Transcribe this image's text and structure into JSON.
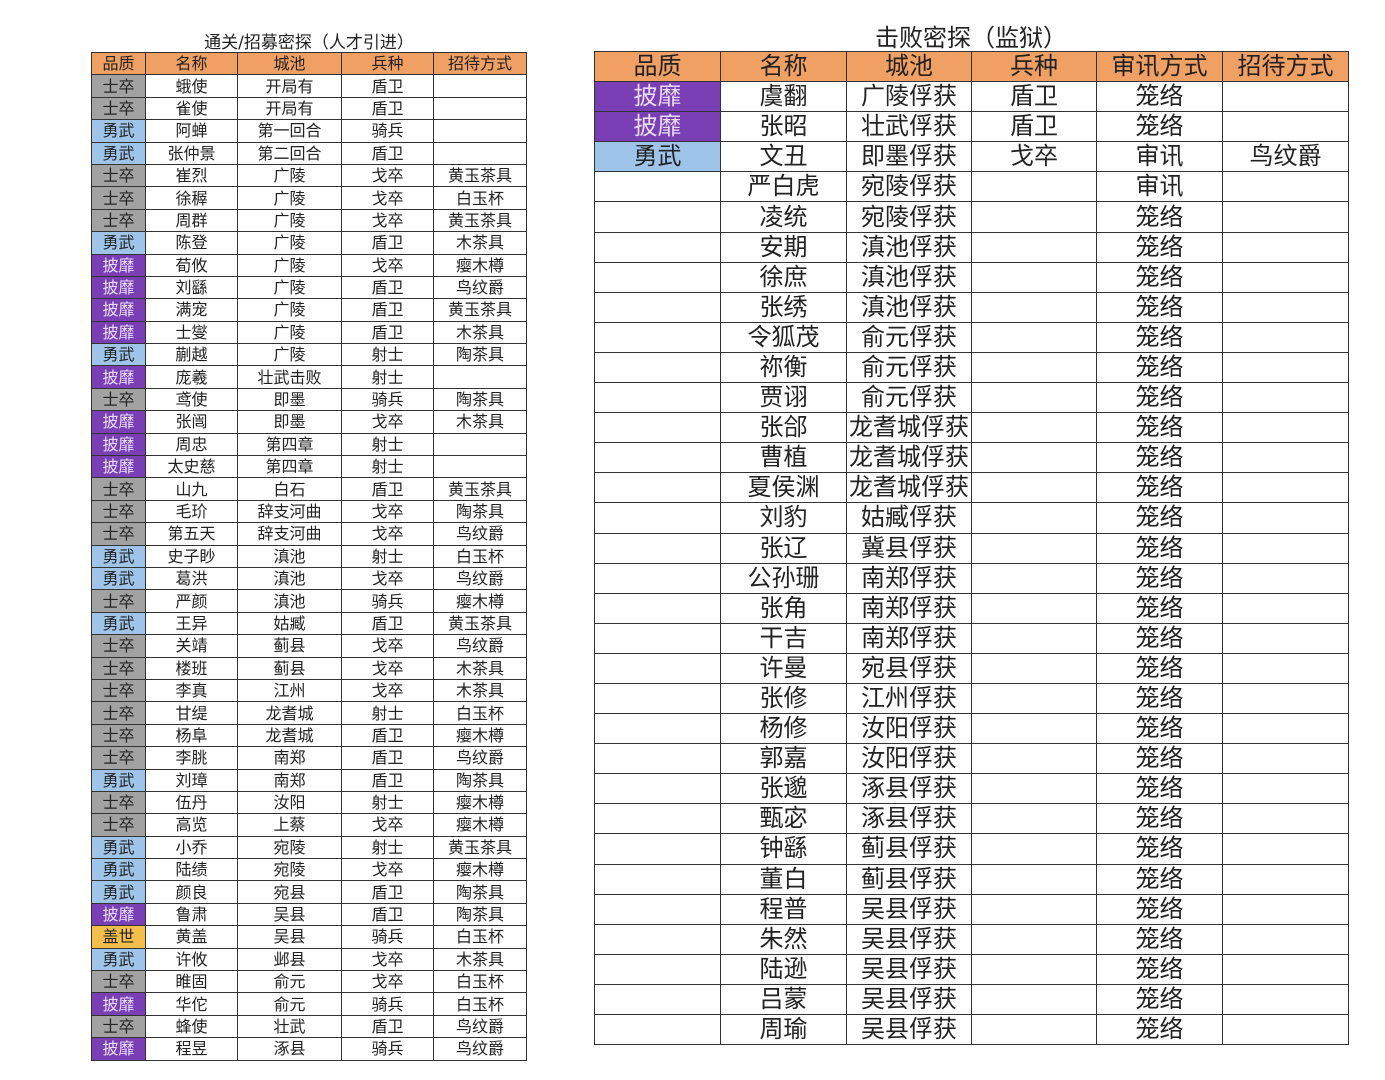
{
  "left_table": {
    "title": "通关/招募密探（人才引进）",
    "headers": [
      "品质",
      "名称",
      "城池",
      "兵种",
      "招待方式"
    ],
    "rows": [
      [
        "士卒",
        "蛾使",
        "开局有",
        "盾卫",
        ""
      ],
      [
        "士卒",
        "雀使",
        "开局有",
        "盾卫",
        ""
      ],
      [
        "勇武",
        "阿蝉",
        "第一回合",
        "骑兵",
        ""
      ],
      [
        "勇武",
        "张仲景",
        "第二回合",
        "盾卫",
        ""
      ],
      [
        "士卒",
        "崔烈",
        "广陵",
        "戈卒",
        "黄玉茶具"
      ],
      [
        "士卒",
        "徐稺",
        "广陵",
        "戈卒",
        "白玉杯"
      ],
      [
        "士卒",
        "周群",
        "广陵",
        "戈卒",
        "黄玉茶具"
      ],
      [
        "勇武",
        "陈登",
        "广陵",
        "盾卫",
        "木茶具"
      ],
      [
        "披靡",
        "荀攸",
        "广陵",
        "戈卒",
        "瘿木樽"
      ],
      [
        "披靡",
        "刘繇",
        "广陵",
        "盾卫",
        "鸟纹爵"
      ],
      [
        "披靡",
        "满宠",
        "广陵",
        "盾卫",
        "黄玉茶具"
      ],
      [
        "披靡",
        "士燮",
        "广陵",
        "盾卫",
        "木茶具"
      ],
      [
        "勇武",
        "蒯越",
        "广陵",
        "射士",
        "陶茶具"
      ],
      [
        "披靡",
        "庞羲",
        "壮武击败",
        "射士",
        ""
      ],
      [
        "士卒",
        "鸢使",
        "即墨",
        "骑兵",
        "陶茶具"
      ],
      [
        "披靡",
        "张闿",
        "即墨",
        "戈卒",
        "木茶具"
      ],
      [
        "披靡",
        "周忠",
        "第四章",
        "射士",
        ""
      ],
      [
        "披靡",
        "太史慈",
        "第四章",
        "射士",
        ""
      ],
      [
        "士卒",
        "山九",
        "白石",
        "盾卫",
        "黄玉茶具"
      ],
      [
        "士卒",
        "毛玠",
        "辞支河曲",
        "戈卒",
        "陶茶具"
      ],
      [
        "士卒",
        "第五天",
        "辞支河曲",
        "戈卒",
        "鸟纹爵"
      ],
      [
        "勇武",
        "史子眇",
        "滇池",
        "射士",
        "白玉杯"
      ],
      [
        "勇武",
        "葛洪",
        "滇池",
        "戈卒",
        "鸟纹爵"
      ],
      [
        "士卒",
        "严颜",
        "滇池",
        "骑兵",
        "瘿木樽"
      ],
      [
        "勇武",
        "王异",
        "姑臧",
        "盾卫",
        "黄玉茶具"
      ],
      [
        "士卒",
        "关靖",
        "蓟县",
        "戈卒",
        "鸟纹爵"
      ],
      [
        "士卒",
        "楼班",
        "蓟县",
        "戈卒",
        "木茶具"
      ],
      [
        "士卒",
        "李真",
        "江州",
        "戈卒",
        "木茶具"
      ],
      [
        "士卒",
        "甘缇",
        "龙耆城",
        "射士",
        "白玉杯"
      ],
      [
        "士卒",
        "杨阜",
        "龙耆城",
        "盾卫",
        "瘿木樽"
      ],
      [
        "士卒",
        "李朓",
        "南郑",
        "盾卫",
        "鸟纹爵"
      ],
      [
        "勇武",
        "刘璋",
        "南郑",
        "盾卫",
        "陶茶具"
      ],
      [
        "士卒",
        "伍丹",
        "汝阳",
        "射士",
        "瘿木樽"
      ],
      [
        "士卒",
        "高览",
        "上蔡",
        "戈卒",
        "瘿木樽"
      ],
      [
        "勇武",
        "小乔",
        "宛陵",
        "射士",
        "黄玉茶具"
      ],
      [
        "勇武",
        "陆绩",
        "宛陵",
        "戈卒",
        "瘿木樽"
      ],
      [
        "勇武",
        "颜良",
        "宛县",
        "盾卫",
        "陶茶具"
      ],
      [
        "披靡",
        "鲁肃",
        "吴县",
        "盾卫",
        "陶茶具"
      ],
      [
        "盖世",
        "黄盖",
        "吴县",
        "骑兵",
        "白玉杯"
      ],
      [
        "勇武",
        "许攸",
        "邺县",
        "戈卒",
        "木茶具"
      ],
      [
        "士卒",
        "睢固",
        "俞元",
        "戈卒",
        "白玉杯"
      ],
      [
        "披靡",
        "华佗",
        "俞元",
        "骑兵",
        "白玉杯"
      ],
      [
        "士卒",
        "蜂使",
        "壮武",
        "盾卫",
        "鸟纹爵"
      ],
      [
        "披靡",
        "程昱",
        "涿县",
        "骑兵",
        "鸟纹爵"
      ]
    ]
  },
  "right_table": {
    "title": "击败密探（监狱）",
    "headers": [
      "品质",
      "名称",
      "城池",
      "兵种",
      "审讯方式",
      "招待方式"
    ],
    "rows": [
      [
        "披靡",
        "虞翻",
        "广陵俘获",
        "盾卫",
        "笼络",
        ""
      ],
      [
        "披靡",
        "张昭",
        "壮武俘获",
        "盾卫",
        "笼络",
        ""
      ],
      [
        "勇武",
        "文丑",
        "即墨俘获",
        "戈卒",
        "审讯",
        "鸟纹爵"
      ],
      [
        "",
        "严白虎",
        "宛陵俘获",
        "",
        "审讯",
        ""
      ],
      [
        "",
        "凌统",
        "宛陵俘获",
        "",
        "笼络",
        ""
      ],
      [
        "",
        "安期",
        "滇池俘获",
        "",
        "笼络",
        ""
      ],
      [
        "",
        "徐庶",
        "滇池俘获",
        "",
        "笼络",
        ""
      ],
      [
        "",
        "张绣",
        "滇池俘获",
        "",
        "笼络",
        ""
      ],
      [
        "",
        "令狐茂",
        "俞元俘获",
        "",
        "笼络",
        ""
      ],
      [
        "",
        "祢衡",
        "俞元俘获",
        "",
        "笼络",
        ""
      ],
      [
        "",
        "贾诩",
        "俞元俘获",
        "",
        "笼络",
        ""
      ],
      [
        "",
        "张郃",
        "龙耆城俘获",
        "",
        "笼络",
        ""
      ],
      [
        "",
        "曹植",
        "龙耆城俘获",
        "",
        "笼络",
        ""
      ],
      [
        "",
        "夏侯渊",
        "龙耆城俘获",
        "",
        "笼络",
        ""
      ],
      [
        "",
        "刘豹",
        "姑臧俘获",
        "",
        "笼络",
        ""
      ],
      [
        "",
        "张辽",
        "冀县俘获",
        "",
        "笼络",
        ""
      ],
      [
        "",
        "公孙珊",
        "南郑俘获",
        "",
        "笼络",
        ""
      ],
      [
        "",
        "张角",
        "南郑俘获",
        "",
        "笼络",
        ""
      ],
      [
        "",
        "干吉",
        "南郑俘获",
        "",
        "笼络",
        ""
      ],
      [
        "",
        "许曼",
        "宛县俘获",
        "",
        "笼络",
        ""
      ],
      [
        "",
        "张修",
        "江州俘获",
        "",
        "笼络",
        ""
      ],
      [
        "",
        "杨修",
        "汝阳俘获",
        "",
        "笼络",
        ""
      ],
      [
        "",
        "郭嘉",
        "汝阳俘获",
        "",
        "笼络",
        ""
      ],
      [
        "",
        "张邈",
        "涿县俘获",
        "",
        "笼络",
        ""
      ],
      [
        "",
        "甄宓",
        "涿县俘获",
        "",
        "笼络",
        ""
      ],
      [
        "",
        "钟繇",
        "蓟县俘获",
        "",
        "笼络",
        ""
      ],
      [
        "",
        "董白",
        "蓟县俘获",
        "",
        "笼络",
        ""
      ],
      [
        "",
        "程普",
        "吴县俘获",
        "",
        "笼络",
        ""
      ],
      [
        "",
        "朱然",
        "吴县俘获",
        "",
        "笼络",
        ""
      ],
      [
        "",
        "陆逊",
        "吴县俘获",
        "",
        "笼络",
        ""
      ],
      [
        "",
        "吕蒙",
        "吴县俘获",
        "",
        "笼络",
        ""
      ],
      [
        "",
        "周瑜",
        "吴县俘获",
        "",
        "笼络",
        ""
      ]
    ]
  },
  "quality_colors": {
    "士卒": "#a2a2a2",
    "勇武": "#9fc4ea",
    "披靡": "#7a3fb4",
    "盖世": "#f3be4a",
    "header": "#f1a063"
  }
}
